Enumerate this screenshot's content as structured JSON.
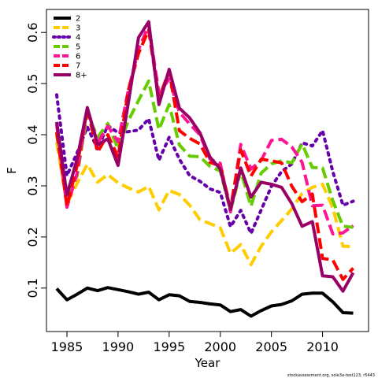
{
  "chart_data": {
    "type": "line",
    "xlabel": "Year",
    "ylabel": "F",
    "xlim": [
      1983,
      2014.5
    ],
    "ylim": [
      0.015,
      0.645
    ],
    "x_ticks": [
      1985,
      1990,
      1995,
      2000,
      2005,
      2010
    ],
    "y_ticks": [
      0.1,
      0.2,
      0.3,
      0.4,
      0.5,
      0.6
    ],
    "x_tick_labels": [
      "1985",
      "1990",
      "1995",
      "2000",
      "2005",
      "2010"
    ],
    "y_tick_labels": [
      "0.1",
      "0.2",
      "0.3",
      "0.4",
      "0.5",
      "0.6"
    ],
    "legend_position": "top-left",
    "grid": false,
    "x": [
      1984,
      1985,
      1986,
      1987,
      1988,
      1989,
      1990,
      1991,
      1992,
      1993,
      1994,
      1995,
      1996,
      1997,
      1998,
      1999,
      2000,
      2001,
      2002,
      2003,
      2004,
      2005,
      2006,
      2007,
      2008,
      2009,
      2010,
      2011,
      2012,
      2013
    ],
    "series": [
      {
        "name": "2",
        "color": "#000000",
        "dash": "solid",
        "values": [
          0.099,
          0.077,
          0.088,
          0.1,
          0.095,
          0.101,
          0.097,
          0.093,
          0.088,
          0.092,
          0.077,
          0.087,
          0.085,
          0.074,
          0.072,
          0.069,
          0.067,
          0.054,
          0.058,
          0.045,
          0.056,
          0.065,
          0.068,
          0.075,
          0.088,
          0.09,
          0.09,
          0.073,
          0.052,
          0.051
        ]
      },
      {
        "name": "3",
        "color": "#ffcc00",
        "dash": "dashed",
        "values": [
          0.385,
          0.265,
          0.305,
          0.342,
          0.307,
          0.322,
          0.306,
          0.296,
          0.288,
          0.299,
          0.253,
          0.291,
          0.283,
          0.262,
          0.234,
          0.226,
          0.218,
          0.168,
          0.185,
          0.146,
          0.182,
          0.21,
          0.232,
          0.255,
          0.285,
          0.297,
          0.303,
          0.257,
          0.182,
          0.181
        ]
      },
      {
        "name": "4",
        "color": "#6600aa",
        "dash": "dotted",
        "values": [
          0.478,
          0.32,
          0.365,
          0.415,
          0.372,
          0.418,
          0.404,
          0.406,
          0.409,
          0.431,
          0.35,
          0.395,
          0.352,
          0.32,
          0.309,
          0.294,
          0.287,
          0.22,
          0.252,
          0.207,
          0.253,
          0.299,
          0.328,
          0.343,
          0.384,
          0.378,
          0.408,
          0.328,
          0.262,
          0.27
        ]
      },
      {
        "name": "5",
        "color": "#66cc00",
        "dash": "dashed",
        "values": [
          0.4,
          0.28,
          0.32,
          0.442,
          0.395,
          0.422,
          0.372,
          0.427,
          0.467,
          0.505,
          0.41,
          0.459,
          0.38,
          0.358,
          0.357,
          0.338,
          0.329,
          0.251,
          0.329,
          0.26,
          0.325,
          0.343,
          0.349,
          0.345,
          0.382,
          0.336,
          0.335,
          0.271,
          0.221,
          0.219
        ]
      },
      {
        "name": "6",
        "color": "#ff1493",
        "dash": "dashed",
        "values": [
          0.42,
          0.258,
          0.325,
          0.451,
          0.384,
          0.417,
          0.386,
          0.487,
          0.566,
          0.614,
          0.481,
          0.509,
          0.444,
          0.421,
          0.4,
          0.352,
          0.344,
          0.249,
          0.381,
          0.333,
          0.35,
          0.389,
          0.391,
          0.376,
          0.346,
          0.261,
          0.262,
          0.206,
          0.208,
          0.222
        ]
      },
      {
        "name": "7",
        "color": "#ff0000",
        "dash": "dashed",
        "values": [
          0.405,
          0.26,
          0.34,
          0.45,
          0.366,
          0.4,
          0.356,
          0.486,
          0.559,
          0.605,
          0.471,
          0.525,
          0.408,
          0.393,
          0.382,
          0.346,
          0.339,
          0.257,
          0.37,
          0.319,
          0.352,
          0.349,
          0.345,
          0.299,
          0.269,
          0.284,
          0.158,
          0.155,
          0.117,
          0.139
        ]
      },
      {
        "name": "8+",
        "color": "#990066",
        "dash": "solid",
        "values": [
          0.425,
          0.282,
          0.353,
          0.453,
          0.38,
          0.392,
          0.34,
          0.462,
          0.59,
          0.621,
          0.459,
          0.528,
          0.452,
          0.433,
          0.404,
          0.356,
          0.333,
          0.254,
          0.335,
          0.278,
          0.307,
          0.303,
          0.297,
          0.265,
          0.221,
          0.23,
          0.124,
          0.122,
          0.094,
          0.13
        ]
      }
    ]
  },
  "credit": "stockassessment.org, sole3a-test123, r5443"
}
